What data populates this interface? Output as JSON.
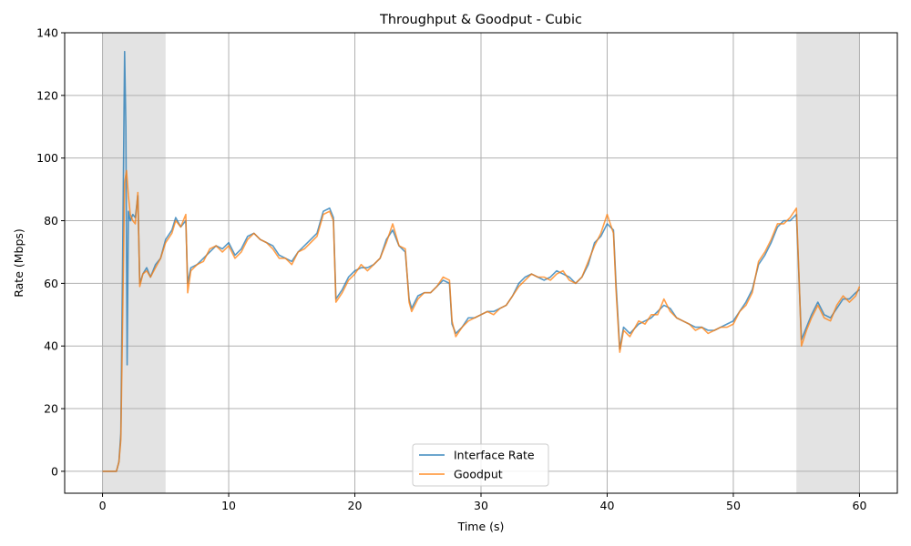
{
  "chart_data": {
    "type": "line",
    "title": "Throughput & Goodput - Cubic",
    "xlabel": "Time (s)",
    "ylabel": "Rate (Mbps)",
    "xlim": [
      -3,
      63
    ],
    "ylim": [
      -7,
      140
    ],
    "xticks": [
      0,
      10,
      20,
      30,
      40,
      50,
      60
    ],
    "yticks": [
      0,
      20,
      40,
      60,
      80,
      100,
      120,
      140
    ],
    "grid": true,
    "legend_position": "bottom-center",
    "shaded_regions": [
      {
        "x0": 0,
        "x1": 5,
        "color": "#d9d9d9"
      },
      {
        "x0": 55,
        "x1": 60,
        "color": "#d9d9d9"
      }
    ],
    "series": [
      {
        "name": "Interface Rate",
        "color": "#1f77b4",
        "points": [
          [
            0,
            0
          ],
          [
            1,
            0
          ],
          [
            1.1,
            0
          ],
          [
            1.3,
            3
          ],
          [
            1.45,
            12
          ],
          [
            1.6,
            70
          ],
          [
            1.75,
            134
          ],
          [
            1.85,
            110
          ],
          [
            1.95,
            34
          ],
          [
            2.05,
            83
          ],
          [
            2.2,
            80
          ],
          [
            2.4,
            82
          ],
          [
            2.6,
            81
          ],
          [
            2.8,
            88
          ],
          [
            2.95,
            60
          ],
          [
            3.2,
            63
          ],
          [
            3.5,
            65
          ],
          [
            3.8,
            62
          ],
          [
            4.2,
            66
          ],
          [
            4.6,
            68
          ],
          [
            5.0,
            74
          ],
          [
            5.5,
            77
          ],
          [
            5.8,
            81
          ],
          [
            6.2,
            78
          ],
          [
            6.6,
            80
          ],
          [
            6.75,
            60
          ],
          [
            7.0,
            65
          ],
          [
            7.5,
            66
          ],
          [
            8.0,
            68
          ],
          [
            8.5,
            70
          ],
          [
            9.0,
            72
          ],
          [
            9.5,
            71
          ],
          [
            10,
            73
          ],
          [
            10.5,
            69
          ],
          [
            11,
            71
          ],
          [
            11.5,
            75
          ],
          [
            12,
            76
          ],
          [
            12.5,
            74
          ],
          [
            13,
            73
          ],
          [
            13.5,
            72
          ],
          [
            14,
            69
          ],
          [
            14.5,
            68
          ],
          [
            15,
            67
          ],
          [
            15.5,
            70
          ],
          [
            16,
            72
          ],
          [
            16.5,
            74
          ],
          [
            17,
            76
          ],
          [
            17.5,
            83
          ],
          [
            18,
            84
          ],
          [
            18.3,
            81
          ],
          [
            18.5,
            55
          ],
          [
            19,
            58
          ],
          [
            19.5,
            62
          ],
          [
            20,
            64
          ],
          [
            20.5,
            65
          ],
          [
            21,
            65
          ],
          [
            21.5,
            66
          ],
          [
            22,
            68
          ],
          [
            22.5,
            74
          ],
          [
            23,
            77
          ],
          [
            23.5,
            72
          ],
          [
            24,
            70
          ],
          [
            24.3,
            55
          ],
          [
            24.5,
            52
          ],
          [
            25,
            56
          ],
          [
            25.5,
            57
          ],
          [
            26,
            57
          ],
          [
            26.5,
            59
          ],
          [
            27,
            61
          ],
          [
            27.5,
            60
          ],
          [
            27.7,
            47
          ],
          [
            28,
            44
          ],
          [
            28.5,
            46
          ],
          [
            29,
            49
          ],
          [
            29.5,
            49
          ],
          [
            30,
            50
          ],
          [
            30.5,
            51
          ],
          [
            31,
            51
          ],
          [
            31.5,
            52
          ],
          [
            32,
            53
          ],
          [
            32.5,
            56
          ],
          [
            33,
            60
          ],
          [
            33.5,
            62
          ],
          [
            34,
            63
          ],
          [
            34.5,
            62
          ],
          [
            35,
            61
          ],
          [
            35.5,
            62
          ],
          [
            36,
            64
          ],
          [
            36.5,
            63
          ],
          [
            37,
            62
          ],
          [
            37.5,
            60
          ],
          [
            38,
            62
          ],
          [
            38.5,
            66
          ],
          [
            39,
            73
          ],
          [
            39.5,
            75
          ],
          [
            40,
            79
          ],
          [
            40.5,
            77
          ],
          [
            40.7,
            60
          ],
          [
            41,
            39
          ],
          [
            41.3,
            46
          ],
          [
            41.8,
            44
          ],
          [
            42.5,
            47
          ],
          [
            43,
            48
          ],
          [
            43.5,
            49
          ],
          [
            44,
            51
          ],
          [
            44.5,
            53
          ],
          [
            45,
            52
          ],
          [
            45.5,
            49
          ],
          [
            46,
            48
          ],
          [
            46.5,
            47
          ],
          [
            47,
            46
          ],
          [
            47.5,
            46
          ],
          [
            48,
            45
          ],
          [
            48.5,
            45
          ],
          [
            49,
            46
          ],
          [
            49.5,
            47
          ],
          [
            50,
            48
          ],
          [
            50.5,
            51
          ],
          [
            51,
            54
          ],
          [
            51.5,
            58
          ],
          [
            52,
            66
          ],
          [
            52.5,
            69
          ],
          [
            53,
            73
          ],
          [
            53.5,
            78
          ],
          [
            54,
            80
          ],
          [
            54.5,
            80
          ],
          [
            55,
            82
          ],
          [
            55.2,
            62
          ],
          [
            55.4,
            42
          ],
          [
            55.8,
            46
          ],
          [
            56.2,
            50
          ],
          [
            56.7,
            54
          ],
          [
            57.2,
            50
          ],
          [
            57.7,
            49
          ],
          [
            58.2,
            52
          ],
          [
            58.7,
            55
          ],
          [
            59.2,
            55
          ],
          [
            59.7,
            57
          ],
          [
            60,
            58
          ]
        ]
      },
      {
        "name": "Goodput",
        "color": "#ff7f0e",
        "points": [
          [
            0,
            0
          ],
          [
            1,
            0
          ],
          [
            1.1,
            0
          ],
          [
            1.3,
            3
          ],
          [
            1.45,
            10
          ],
          [
            1.6,
            50
          ],
          [
            1.75,
            92
          ],
          [
            1.9,
            96
          ],
          [
            2.05,
            88
          ],
          [
            2.2,
            82
          ],
          [
            2.4,
            80
          ],
          [
            2.6,
            79
          ],
          [
            2.8,
            89
          ],
          [
            2.95,
            59
          ],
          [
            3.2,
            63
          ],
          [
            3.5,
            64
          ],
          [
            3.8,
            62
          ],
          [
            4.2,
            65
          ],
          [
            4.6,
            68
          ],
          [
            5.0,
            73
          ],
          [
            5.5,
            76
          ],
          [
            5.8,
            80
          ],
          [
            6.2,
            78
          ],
          [
            6.6,
            82
          ],
          [
            6.75,
            57
          ],
          [
            7.0,
            64
          ],
          [
            7.5,
            66
          ],
          [
            8.0,
            67
          ],
          [
            8.5,
            71
          ],
          [
            9.0,
            72
          ],
          [
            9.5,
            70
          ],
          [
            10,
            72
          ],
          [
            10.5,
            68
          ],
          [
            11,
            70
          ],
          [
            11.5,
            74
          ],
          [
            12,
            76
          ],
          [
            12.5,
            74
          ],
          [
            13,
            73
          ],
          [
            13.5,
            71
          ],
          [
            14,
            68
          ],
          [
            14.5,
            68
          ],
          [
            15,
            66
          ],
          [
            15.5,
            70
          ],
          [
            16,
            71
          ],
          [
            16.5,
            73
          ],
          [
            17,
            75
          ],
          [
            17.5,
            82
          ],
          [
            18,
            83
          ],
          [
            18.3,
            80
          ],
          [
            18.5,
            54
          ],
          [
            19,
            57
          ],
          [
            19.5,
            61
          ],
          [
            20,
            63
          ],
          [
            20.5,
            66
          ],
          [
            21,
            64
          ],
          [
            21.5,
            66
          ],
          [
            22,
            68
          ],
          [
            22.5,
            73
          ],
          [
            23,
            79
          ],
          [
            23.5,
            72
          ],
          [
            24,
            71
          ],
          [
            24.3,
            54
          ],
          [
            24.5,
            51
          ],
          [
            25,
            55
          ],
          [
            25.5,
            57
          ],
          [
            26,
            57
          ],
          [
            26.5,
            59
          ],
          [
            27,
            62
          ],
          [
            27.5,
            61
          ],
          [
            27.7,
            48
          ],
          [
            28,
            43
          ],
          [
            28.5,
            46
          ],
          [
            29,
            48
          ],
          [
            29.5,
            49
          ],
          [
            30,
            50
          ],
          [
            30.5,
            51
          ],
          [
            31,
            50
          ],
          [
            31.5,
            52
          ],
          [
            32,
            53
          ],
          [
            32.5,
            56
          ],
          [
            33,
            59
          ],
          [
            33.5,
            61
          ],
          [
            34,
            63
          ],
          [
            34.5,
            62
          ],
          [
            35,
            62
          ],
          [
            35.5,
            61
          ],
          [
            36,
            63
          ],
          [
            36.5,
            64
          ],
          [
            37,
            61
          ],
          [
            37.5,
            60
          ],
          [
            38,
            62
          ],
          [
            38.5,
            67
          ],
          [
            39,
            72
          ],
          [
            39.5,
            76
          ],
          [
            40,
            82
          ],
          [
            40.5,
            76
          ],
          [
            40.7,
            58
          ],
          [
            41,
            38
          ],
          [
            41.3,
            45
          ],
          [
            41.8,
            43
          ],
          [
            42.5,
            48
          ],
          [
            43,
            47
          ],
          [
            43.5,
            50
          ],
          [
            44,
            50
          ],
          [
            44.5,
            55
          ],
          [
            45,
            51
          ],
          [
            45.5,
            49
          ],
          [
            46,
            48
          ],
          [
            46.5,
            47
          ],
          [
            47,
            45
          ],
          [
            47.5,
            46
          ],
          [
            48,
            44
          ],
          [
            48.5,
            45
          ],
          [
            49,
            46
          ],
          [
            49.5,
            46
          ],
          [
            50,
            47
          ],
          [
            50.5,
            51
          ],
          [
            51,
            53
          ],
          [
            51.5,
            57
          ],
          [
            52,
            67
          ],
          [
            52.5,
            70
          ],
          [
            53,
            74
          ],
          [
            53.5,
            79
          ],
          [
            54,
            79
          ],
          [
            54.5,
            81
          ],
          [
            55,
            84
          ],
          [
            55.2,
            63
          ],
          [
            55.4,
            40
          ],
          [
            55.8,
            45
          ],
          [
            56.2,
            49
          ],
          [
            56.7,
            53
          ],
          [
            57.2,
            49
          ],
          [
            57.7,
            48
          ],
          [
            58.2,
            53
          ],
          [
            58.7,
            56
          ],
          [
            59.2,
            54
          ],
          [
            59.7,
            56
          ],
          [
            60,
            59
          ]
        ]
      }
    ]
  }
}
